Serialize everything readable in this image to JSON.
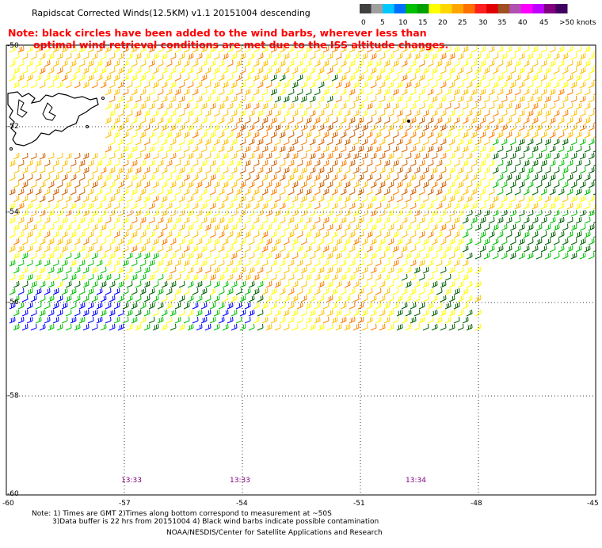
{
  "header": {
    "title": "Rapidscat Corrected Winds(12.5KM) v1.1 20151004 descending"
  },
  "note": {
    "line1": "Note: black circles have been added to the wind barbs, wherever less than",
    "line2": "optimal wind retrieval conditions are met due to the ISS altitude changes."
  },
  "legend": {
    "labels": [
      "0",
      "5",
      "10",
      "15",
      "20",
      "25",
      "30",
      "35",
      "40",
      "45",
      ">50 knots"
    ],
    "colors": [
      "#404040",
      "#a0a0a0",
      "#00c8ff",
      "#0070ff",
      "#00c000",
      "#00a000",
      "#ffff00",
      "#ffd700",
      "#ffa500",
      "#ff7000",
      "#ff2020",
      "#e00000",
      "#a05020",
      "#b050b0",
      "#ff00ff",
      "#c000ff",
      "#800080",
      "#400060"
    ]
  },
  "map": {
    "lat_labels": [
      "-50",
      "-52",
      "-54",
      "-56",
      "-58",
      "-60"
    ],
    "lon_labels": [
      "-60",
      "-57",
      "-54",
      "-51",
      "-48",
      "-45"
    ],
    "pass_times": [
      "13:33",
      "13:33",
      "13:34"
    ],
    "barb_colors": {
      "blue": "#0000ff",
      "green": "#00c000",
      "darkgreen": "#006000",
      "yellow": "#ffff00",
      "gold": "#ffc000",
      "orange": "#ff8000",
      "darkorange": "#d06000",
      "black": "#000000"
    }
  },
  "footer": {
    "line1": "Note: 1) Times are GMT 2)Times along bottom correspond to measurement at ~50S",
    "line2": "3)Data buffer is 22 hrs from 20151004 4) Black wind barbs indicate possible contamination",
    "line3": "NOAA/NESDIS/Center for Satellite Applications and Research"
  }
}
